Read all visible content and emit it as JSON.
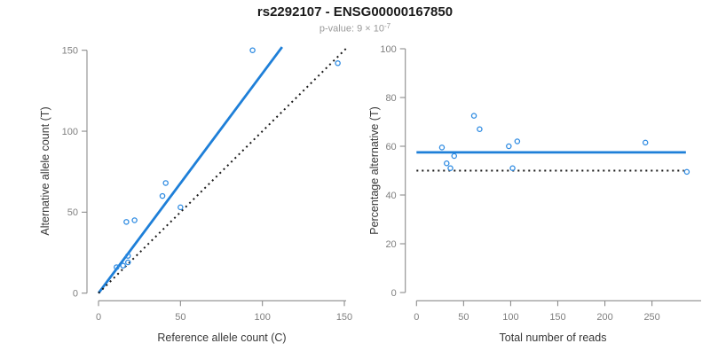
{
  "title": "rs2292107 - ENSG00000167850",
  "subtitle": {
    "main": "p-value: 9 × 10",
    "exponent": "-7"
  },
  "colors": {
    "blue": "#1E7FD8",
    "point_blue": "#2E8BE2",
    "black": "#1a1a1a",
    "axis_gray": "#8C8C8C",
    "tick_label_gray": "#7f7f7f",
    "axis_title": "#383838",
    "title": "#1b1b1b",
    "subtitle": "#999999"
  },
  "chart_data": [
    {
      "type": "scatter",
      "panel": "left",
      "xlabel": "Reference allele count (C)",
      "ylabel": "Alternative allele count (T)",
      "xlim": [
        0,
        151
      ],
      "ylim": [
        0,
        152
      ],
      "xticks": [
        0,
        50,
        100,
        150
      ],
      "yticks": [
        0,
        50,
        100,
        150
      ],
      "grid": false,
      "legend": "none",
      "points": [
        [
          11,
          16
        ],
        [
          15,
          17
        ],
        [
          18,
          19
        ],
        [
          18,
          23
        ],
        [
          17,
          44
        ],
        [
          22,
          45
        ],
        [
          39,
          60
        ],
        [
          41,
          68
        ],
        [
          50,
          53
        ],
        [
          94,
          150
        ],
        [
          146,
          142
        ]
      ],
      "lines": [
        {
          "name": "fit-line",
          "style": "solid",
          "color": "blue",
          "x1": 0,
          "y1": 0,
          "x2": 112,
          "y2": 152
        },
        {
          "name": "identity-line",
          "style": "dotted",
          "color": "black",
          "x1": 0,
          "y1": 0,
          "x2": 151,
          "y2": 151
        }
      ]
    },
    {
      "type": "scatter",
      "panel": "right",
      "xlabel": "Total number of reads",
      "ylabel": "Percentage alternative (T)",
      "xlim": [
        0,
        302
      ],
      "ylim": [
        0,
        100
      ],
      "xticks": [
        0,
        50,
        100,
        150,
        200,
        250
      ],
      "yticks": [
        0,
        20,
        40,
        60,
        80,
        100
      ],
      "grid": false,
      "legend": "none",
      "points": [
        [
          27,
          59.5
        ],
        [
          32,
          53
        ],
        [
          36,
          51
        ],
        [
          40,
          56
        ],
        [
          61,
          72.5
        ],
        [
          67,
          67
        ],
        [
          98,
          60
        ],
        [
          102,
          51
        ],
        [
          107,
          62
        ],
        [
          243,
          61.5
        ],
        [
          287,
          49.5
        ]
      ],
      "lines": [
        {
          "name": "fit-line",
          "style": "solid",
          "color": "blue",
          "x1": 0,
          "y1": 57.5,
          "x2": 286,
          "y2": 57.5
        },
        {
          "name": "identity-line",
          "style": "dotted",
          "color": "black",
          "x1": 0,
          "y1": 50,
          "x2": 284,
          "y2": 50
        }
      ]
    }
  ]
}
